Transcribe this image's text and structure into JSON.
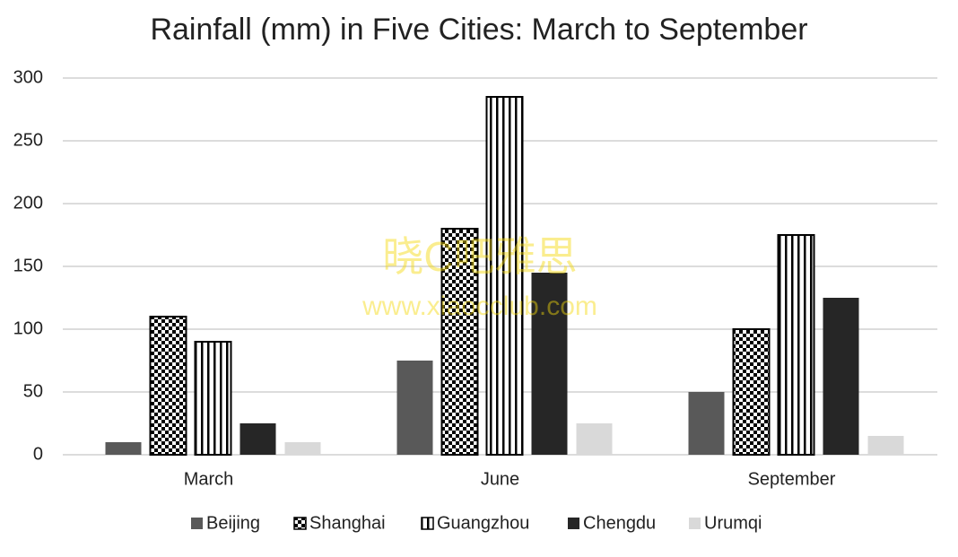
{
  "chart_data": {
    "type": "bar",
    "title": "Rainfall (mm) in Five Cities: March to September",
    "categories": [
      "March",
      "June",
      "September"
    ],
    "series": [
      {
        "name": "Beijing",
        "color": "#595959",
        "pattern": "solid",
        "values": [
          10,
          75,
          50
        ]
      },
      {
        "name": "Shanghai",
        "color": "#000000",
        "pattern": "checker",
        "values": [
          110,
          180,
          100
        ]
      },
      {
        "name": "Guangzhou",
        "color": "#000000",
        "pattern": "stripes",
        "values": [
          90,
          285,
          175
        ]
      },
      {
        "name": "Chengdu",
        "color": "#262626",
        "pattern": "solid",
        "values": [
          25,
          145,
          125
        ]
      },
      {
        "name": "Urumqi",
        "color": "#d9d9d9",
        "pattern": "solid",
        "values": [
          10,
          25,
          15
        ]
      }
    ],
    "ylim": [
      0,
      300
    ],
    "yticks": [
      0,
      50,
      100,
      150,
      200,
      250,
      300
    ],
    "grid": true,
    "legend": "bottom",
    "watermark": [
      "晓C吧雅思",
      "www.xiaocclub.com"
    ]
  }
}
